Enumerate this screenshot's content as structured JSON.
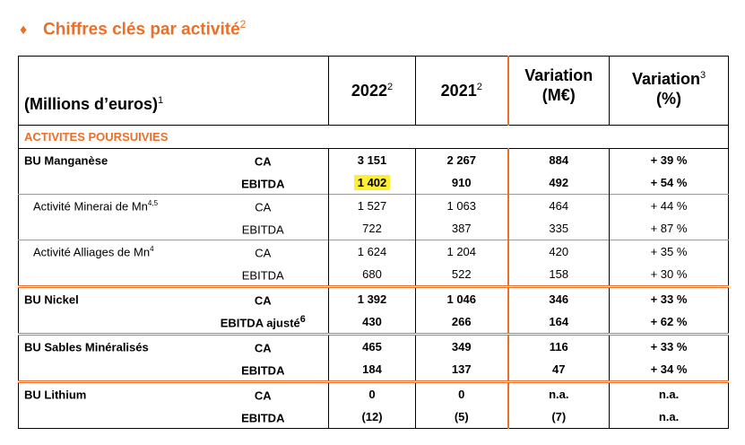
{
  "title": {
    "text": "Chiffres clés par activité",
    "sup": "2"
  },
  "header": {
    "label": "(Millions d’euros)",
    "label_sup": "1",
    "y2022": "2022",
    "y2022_sup": "2",
    "y2021": "2021",
    "y2021_sup": "2",
    "var_abs_1": "Variation",
    "var_abs_2": "(M€)",
    "var_pct_1": "Variation",
    "var_pct_sup": "3",
    "var_pct_2": "(%)"
  },
  "section": "ACTIVITES POURSUIVIES",
  "rows": [
    {
      "name": "BU Manganèse",
      "sup": "",
      "metric": "CA",
      "metric_sup": "",
      "v2022": "3 151",
      "v2021": "2 267",
      "var": "884",
      "pct": "+ 39 %"
    },
    {
      "name": "",
      "sup": "",
      "metric": "EBITDA",
      "metric_sup": "",
      "v2022": "1 402",
      "v2021": "910",
      "var": "492",
      "pct": "+ 54 %"
    },
    {
      "name": "Activité Minerai de Mn",
      "sup": "4,5",
      "metric": "CA",
      "metric_sup": "",
      "v2022": "1 527",
      "v2021": "1 063",
      "var": "464",
      "pct": "+ 44 %"
    },
    {
      "name": "",
      "sup": "",
      "metric": "EBITDA",
      "metric_sup": "",
      "v2022": "722",
      "v2021": "387",
      "var": "335",
      "pct": "+ 87 %"
    },
    {
      "name": "Activité Alliages de Mn",
      "sup": "4",
      "metric": "CA",
      "metric_sup": "",
      "v2022": "1 624",
      "v2021": "1 204",
      "var": "420",
      "pct": "+ 35 %"
    },
    {
      "name": "",
      "sup": "",
      "metric": "EBITDA",
      "metric_sup": "",
      "v2022": "680",
      "v2021": "522",
      "var": "158",
      "pct": "+ 30 %"
    },
    {
      "name": "BU Nickel",
      "sup": "",
      "metric": "CA",
      "metric_sup": "",
      "v2022": "1 392",
      "v2021": "1 046",
      "var": "346",
      "pct": "+ 33 %"
    },
    {
      "name": "",
      "sup": "",
      "metric": "EBITDA ajusté",
      "metric_sup": "6",
      "v2022": "430",
      "v2021": "266",
      "var": "164",
      "pct": "+ 62 %"
    },
    {
      "name": "BU Sables Minéralisés",
      "sup": "",
      "metric": "CA",
      "metric_sup": "",
      "v2022": "465",
      "v2021": "349",
      "var": "116",
      "pct": "+ 33 %"
    },
    {
      "name": "",
      "sup": "",
      "metric": "EBITDA",
      "metric_sup": "",
      "v2022": "184",
      "v2021": "137",
      "var": "47",
      "pct": "+ 34 %"
    },
    {
      "name": "BU Lithium",
      "sup": "",
      "metric": "CA",
      "metric_sup": "",
      "v2022": "0",
      "v2021": "0",
      "var": "n.a.",
      "pct": "n.a."
    },
    {
      "name": "",
      "sup": "",
      "metric": "EBITDA",
      "metric_sup": "",
      "v2022": "(12)",
      "v2021": "(5)",
      "var": "(7)",
      "pct": "n.a."
    }
  ]
}
